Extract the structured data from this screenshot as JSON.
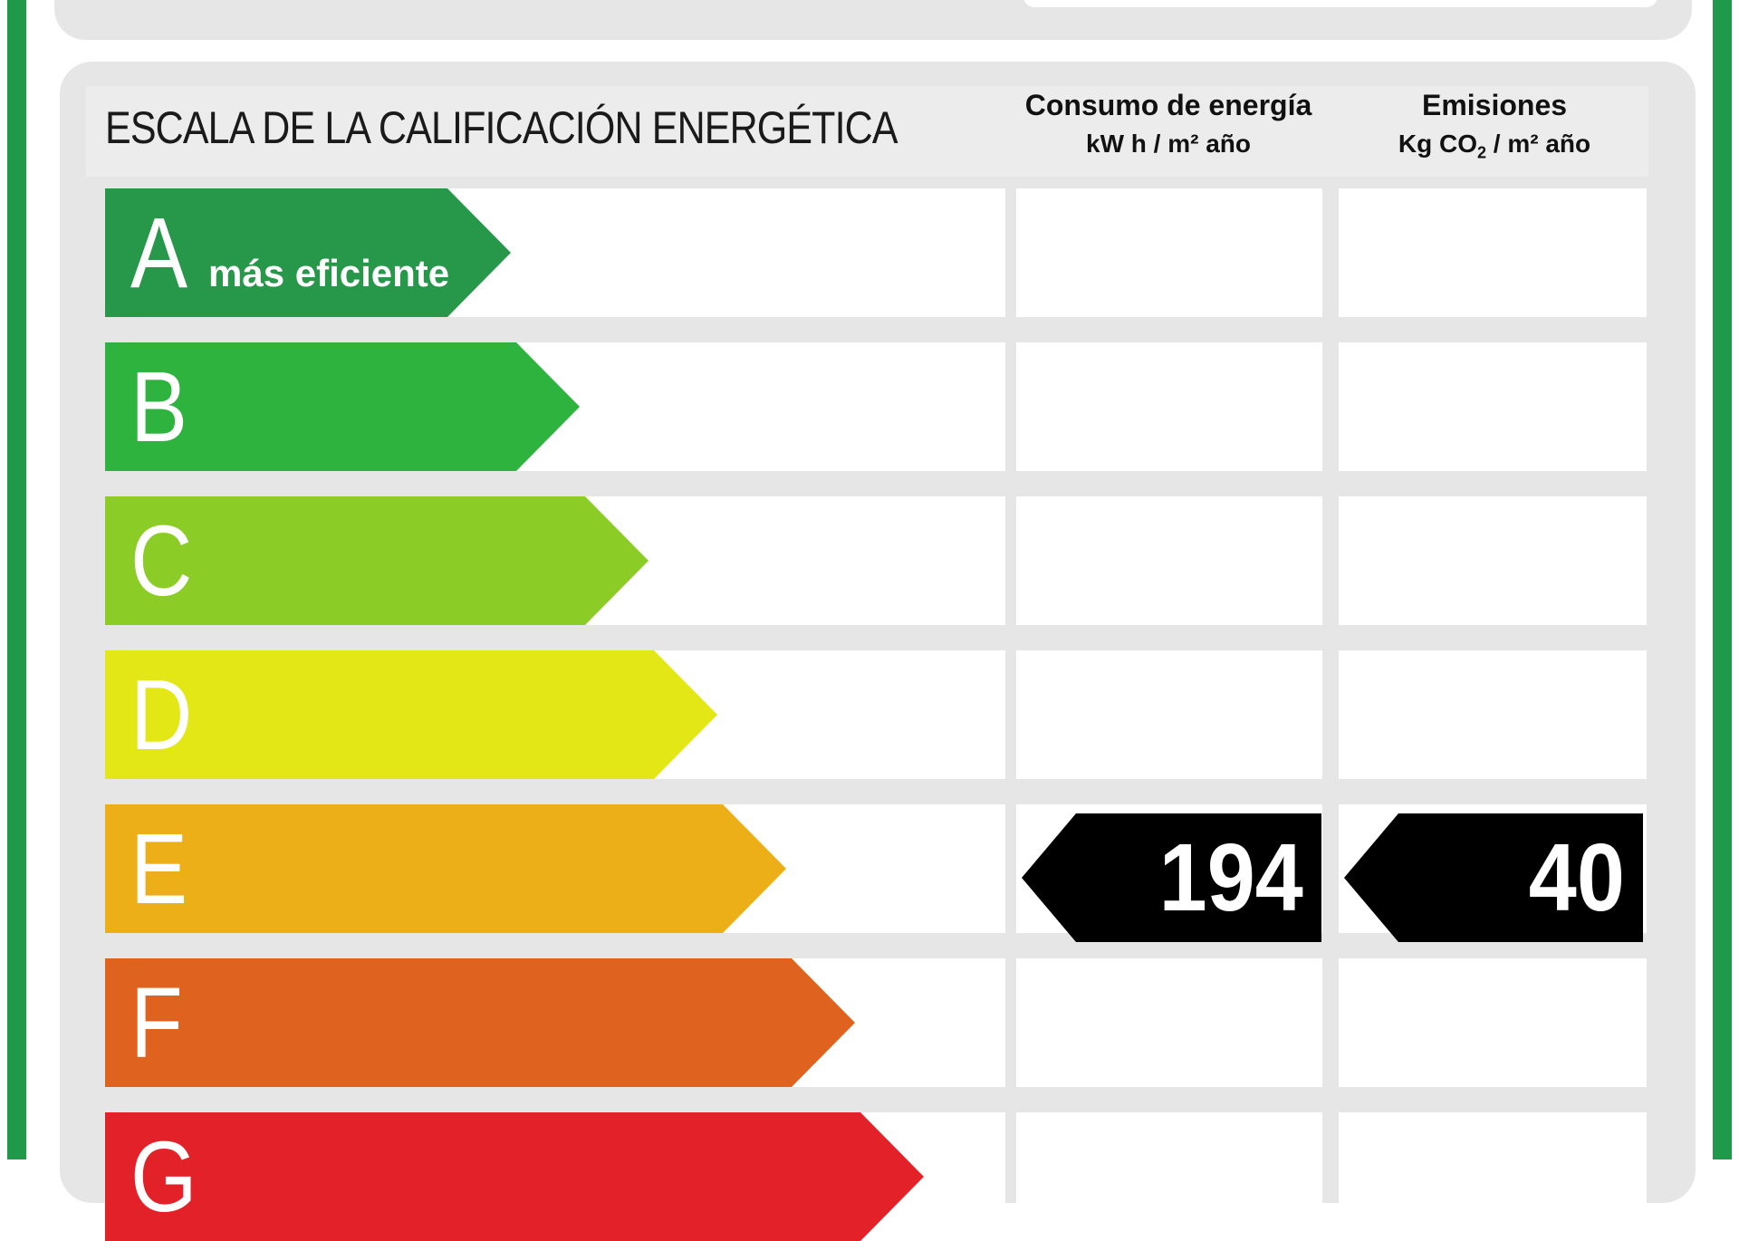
{
  "header": {
    "scale_title": "ESCALA DE LA CALIFICACIÓN ENERGÉTICA",
    "energy_col_line1": "Consumo de energía",
    "energy_col_line2": "kW h / m² año",
    "emissions_col_line1": "Emisiones",
    "emissions_col_unit_pre": "Kg CO",
    "emissions_col_unit_sub": "2",
    "emissions_col_unit_post": " / m² año"
  },
  "ratings": [
    {
      "letter": "A",
      "label": "más eficiente",
      "color": "#27974a"
    },
    {
      "letter": "B",
      "label": "",
      "color": "#2fb33f"
    },
    {
      "letter": "C",
      "label": "",
      "color": "#8bcd26"
    },
    {
      "letter": "D",
      "label": "",
      "color": "#e2e715"
    },
    {
      "letter": "E",
      "label": "",
      "color": "#ecaf18"
    },
    {
      "letter": "F",
      "label": "",
      "color": "#df631e"
    },
    {
      "letter": "G",
      "label": "",
      "color": "#e22228"
    }
  ],
  "current_rating": "E",
  "energy_consumption": {
    "value": "194",
    "rating": "E"
  },
  "emissions": {
    "value": "40",
    "rating": "E"
  },
  "frame_color": "#1e9a4a"
}
